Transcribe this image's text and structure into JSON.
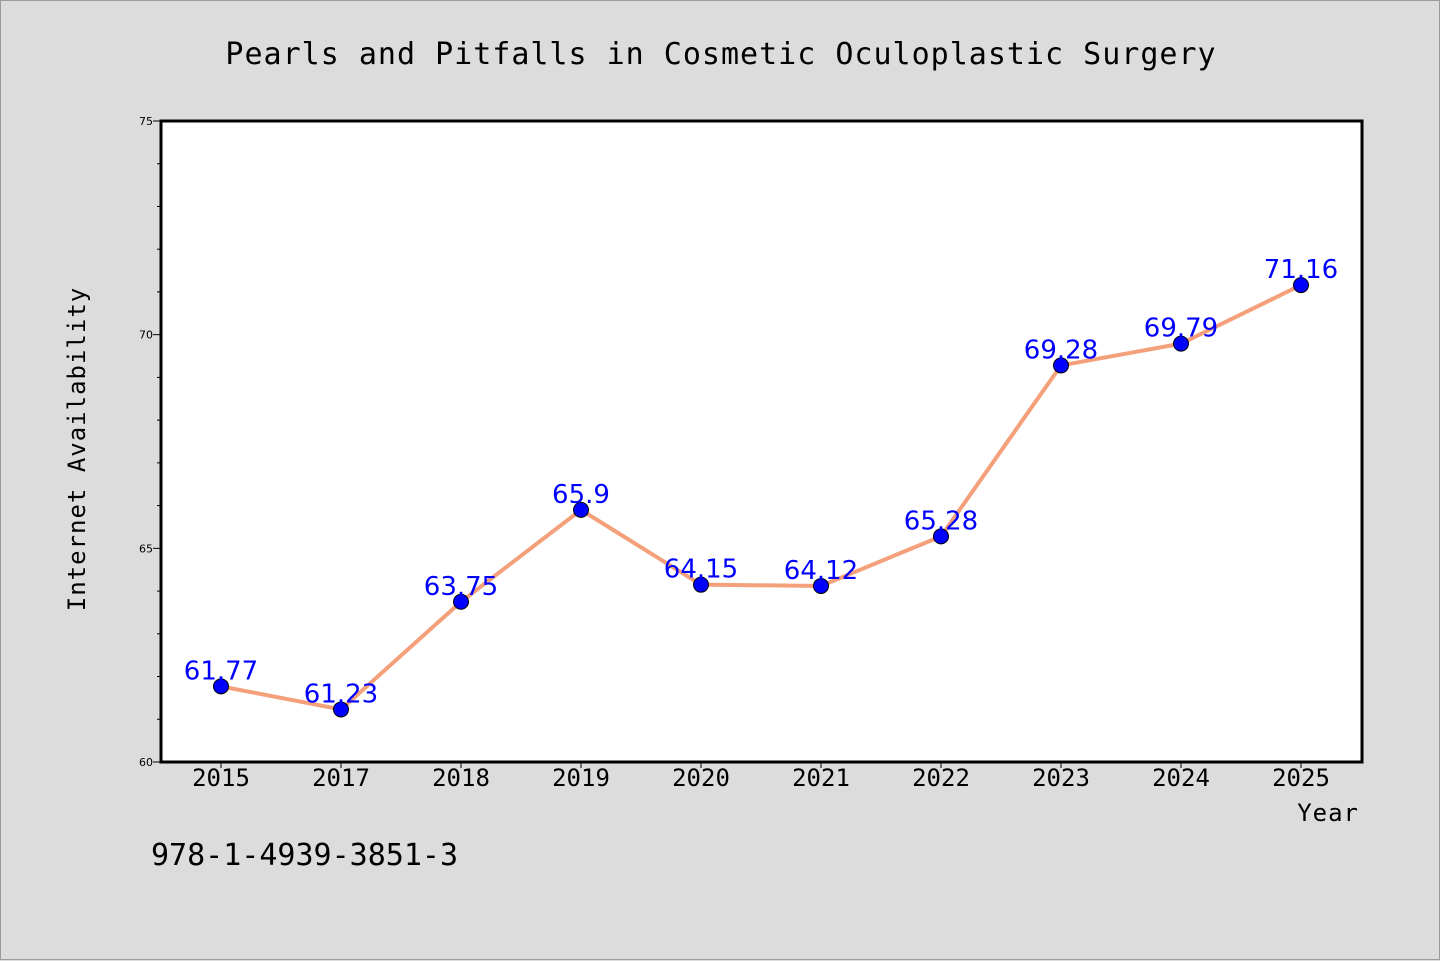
{
  "chart_data": {
    "type": "line",
    "title": "Pearls and Pitfalls in Cosmetic Oculoplastic Surgery",
    "xlabel": "Year",
    "ylabel": "Internet Availability",
    "categories": [
      "2015",
      "2017",
      "2018",
      "2019",
      "2020",
      "2021",
      "2022",
      "2023",
      "2024",
      "2025"
    ],
    "series": [
      {
        "values": [
          61.77,
          61.23,
          63.75,
          65.9,
          64.15,
          64.12,
          65.28,
          69.28,
          69.79,
          71.16
        ],
        "data_labels": [
          "61.77",
          "61.23",
          "63.75",
          "65.9",
          "64.15",
          "64.12",
          "65.28",
          "69.28",
          "69.79",
          "71.16"
        ],
        "line_color": "#f4a07a",
        "marker_color": "#0000ff"
      }
    ],
    "ylim": [
      60,
      75
    ],
    "yticks": [
      "60",
      "65",
      "70",
      "75"
    ],
    "grid": false,
    "legend": "none",
    "background_color": "#dcdcdc",
    "plot_background_color": "#ffffff",
    "label_color": "#0000ff"
  },
  "footer": {
    "isbn": "978-1-4939-3851-3"
  }
}
